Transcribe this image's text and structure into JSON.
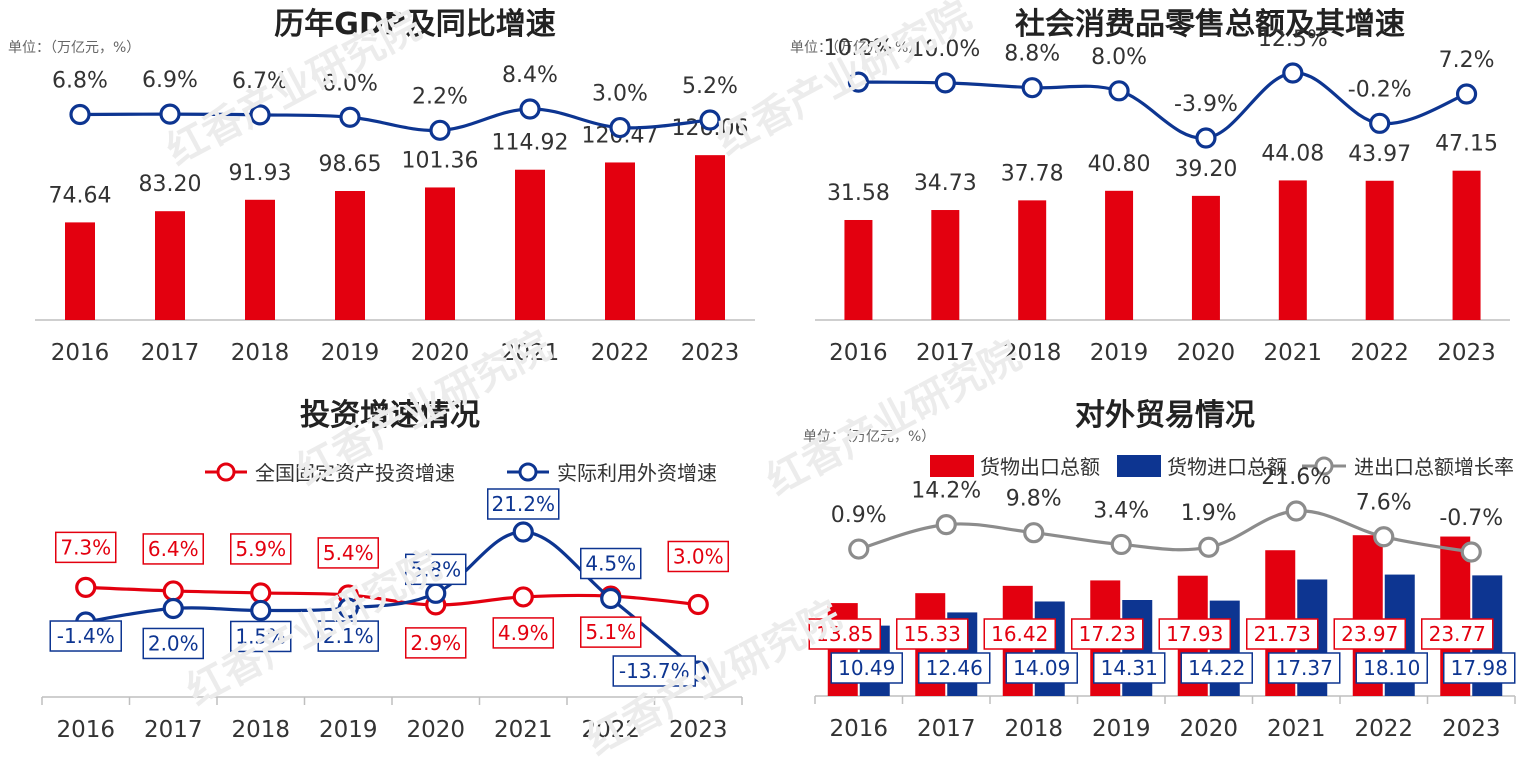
{
  "colors": {
    "red": "#e3000f",
    "blue": "#0d3591",
    "gray": "#8c8c8c",
    "axis": "#bfbfbf",
    "label": "#333333",
    "watermark": "#ececec"
  },
  "watermark": "红香产业研究院",
  "chart_data": [
    {
      "id": "gdp",
      "type": "bar+line",
      "title": "历年GDP及同比增速",
      "unit_note": "单位：（万亿元，%）",
      "categories": [
        "2016",
        "2017",
        "2018",
        "2019",
        "2020",
        "2021",
        "2022",
        "2023"
      ],
      "series": [
        {
          "kind": "bar",
          "color_key": "red",
          "values": [
            74.64,
            83.2,
            91.93,
            98.65,
            101.36,
            114.92,
            120.47,
            126.06
          ],
          "labels": [
            "74.64",
            "83.20",
            "91.93",
            "98.65",
            "101.36",
            "114.92",
            "120.47",
            "126.06"
          ]
        },
        {
          "kind": "line",
          "color_key": "blue",
          "values": [
            6.8,
            6.9,
            6.7,
            6.0,
            2.2,
            8.4,
            3.0,
            5.2
          ],
          "labels": [
            "6.8%",
            "6.9%",
            "6.7%",
            "6.0%",
            "2.2%",
            "8.4%",
            "3.0%",
            "5.2%"
          ]
        }
      ]
    },
    {
      "id": "retail",
      "type": "bar+line",
      "title": "社会消费品零售总额及其增速",
      "unit_note": "单位：（万亿元，%）",
      "categories": [
        "2016",
        "2017",
        "2018",
        "2019",
        "2020",
        "2021",
        "2022",
        "2023"
      ],
      "series": [
        {
          "kind": "bar",
          "color_key": "red",
          "values": [
            31.58,
            34.73,
            37.78,
            40.8,
            39.2,
            44.08,
            43.97,
            47.15
          ],
          "labels": [
            "31.58",
            "34.73",
            "37.78",
            "40.80",
            "39.20",
            "44.08",
            "43.97",
            "47.15"
          ]
        },
        {
          "kind": "line",
          "color_key": "blue",
          "values": [
            10.2,
            10.0,
            8.8,
            8.0,
            -3.9,
            12.5,
            -0.2,
            7.2
          ],
          "labels": [
            "10.2%",
            "10.0%",
            "8.8%",
            "8.0%",
            "-3.9%",
            "12.5%",
            "-0.2%",
            "7.2%"
          ]
        }
      ]
    },
    {
      "id": "invest",
      "type": "line",
      "title": "投资增速情况",
      "categories": [
        "2016",
        "2017",
        "2018",
        "2019",
        "2020",
        "2021",
        "2022",
        "2023"
      ],
      "legend": [
        "全国固定资产投资增速",
        "实际利用外资增速"
      ],
      "series": [
        {
          "name": "全国固定资产投资增速",
          "color_key": "red",
          "values": [
            7.3,
            6.4,
            5.9,
            5.4,
            2.9,
            4.9,
            5.1,
            3.0
          ],
          "labels": [
            "7.3%",
            "6.4%",
            "5.9%",
            "5.4%",
            "2.9%",
            "4.9%",
            "5.1%",
            "3.0%"
          ]
        },
        {
          "name": "实际利用外资增速",
          "color_key": "blue",
          "values": [
            -1.4,
            2.0,
            1.5,
            2.1,
            5.8,
            21.2,
            4.5,
            -13.7
          ],
          "labels": [
            "-1.4%",
            "2.0%",
            "1.5%",
            "2.1%",
            "5.8%",
            "21.2%",
            "4.5%",
            "-13.7%"
          ]
        }
      ]
    },
    {
      "id": "trade",
      "type": "bar+line",
      "title": "对外贸易情况",
      "unit_note": "单位：（万亿元，%）",
      "categories": [
        "2016",
        "2017",
        "2018",
        "2019",
        "2020",
        "2021",
        "2022",
        "2023"
      ],
      "legend": [
        "货物出口总额",
        "货物进口总额",
        "进出口总额增长率"
      ],
      "series": [
        {
          "name": "货物出口总额",
          "kind": "bar",
          "color_key": "red",
          "values": [
            13.85,
            15.33,
            16.42,
            17.23,
            17.93,
            21.73,
            23.97,
            23.77
          ],
          "labels": [
            "13.85",
            "15.33",
            "16.42",
            "17.23",
            "17.93",
            "21.73",
            "23.97",
            "23.77"
          ]
        },
        {
          "name": "货物进口总额",
          "kind": "bar",
          "color_key": "blue",
          "values": [
            10.49,
            12.46,
            14.09,
            14.31,
            14.22,
            17.37,
            18.1,
            17.98
          ],
          "labels": [
            "10.49",
            "12.46",
            "14.09",
            "14.31",
            "14.22",
            "17.37",
            "18.10",
            "17.98"
          ]
        },
        {
          "name": "进出口总额增长率",
          "kind": "line",
          "color_key": "gray",
          "values": [
            0.9,
            14.2,
            9.8,
            3.4,
            1.9,
            21.6,
            7.6,
            -0.7
          ],
          "labels": [
            "0.9%",
            "14.2%",
            "9.8%",
            "3.4%",
            "1.9%",
            "21.6%",
            "7.6%",
            "-0.7%"
          ]
        }
      ]
    }
  ]
}
